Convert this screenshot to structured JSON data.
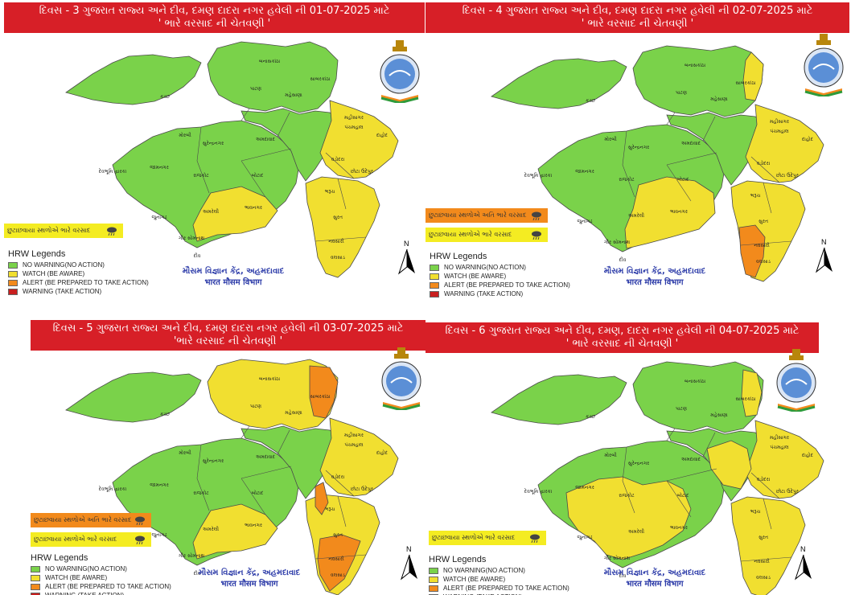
{
  "colors": {
    "banner": "#d71f27",
    "no_warning": "#7ad24a",
    "watch": "#f1df30",
    "alert": "#f28a1c",
    "warning": "#c81f1f",
    "office_text": "#2b3aa8"
  },
  "legend": {
    "title": "HRW Legends",
    "items": [
      {
        "label": "NO WARNING(NO ACTION)",
        "color": "#7ad24a"
      },
      {
        "label": "WATCH (BE AWARE)",
        "color": "#f1df30"
      },
      {
        "label": "ALERT (BE PREPARED TO TAKE ACTION)",
        "color": "#f28a1c"
      },
      {
        "label": "WARNING (TAKE ACTION)",
        "color": "#c81f1f"
      }
    ]
  },
  "office": {
    "line1": "મૌસમ વિજ્ઞાન કેંદ્ર, અહમદાવાદ",
    "line2": "भारत मौसम विभाग"
  },
  "north_label": "N",
  "panels": [
    {
      "title_line1": "દિવસ - 3 ગુજરાત રાજ્ય અને દીવ, દમણ દાદરા નગર હવેલી ની 01-07-2025 માટે",
      "title_line2": "' ભારે વરસાદ ની ચેતવણી '",
      "heavy_rain_label": "છુટાછવાયા સ્થળોએ ભારે વરસાદ",
      "very_heavy_rain_label": ""
    },
    {
      "title_line1": "દિવસ - 4 ગુજરાત રાજ્ય અને દીવ, દમણ દાદરા નગર હવેલી ની 02-07-2025 માટે",
      "title_line2": "' ભારે વરસાદ ની ચેતવણી '",
      "heavy_rain_label": "છુટાછવાયા સ્થળોએ ભારે વરસાદ",
      "very_heavy_rain_label": "છુટાછવાયા સ્થળોએ અતિ ભારે વરસાદ"
    },
    {
      "title_line1": "દિવસ - 5  ગુજરાત રાજ્ય અને દીવ, દમણ દાદરા નગર હવેલી ની  03-07-2025 માટે",
      "title_line2": "'ભારે વરસાદ ની ચેતવણી '",
      "heavy_rain_label": "છુટાછવાયા સ્થળોએ ભારે વરસાદ",
      "very_heavy_rain_label": "છુટાછવાયા સ્થળોએ અતિ ભારે વરસાદ"
    },
    {
      "title_line1": "દિવસ - 6  ગુજરાત રાજ્ય અને દીવ, દમણ, દાદરા નગર હવેલી ની 04-07-2025 માટે",
      "title_line2": "' ભારે વરસાદ ની ચેતવણી '",
      "heavy_rain_label": "છુટાછવાયા સ્થળોએ ભારે વરસાદ",
      "very_heavy_rain_label": ""
    }
  ],
  "districts": [
    "કચ્છ",
    "બનાસકાંઠા",
    "પાટણ",
    "મહેસાણા",
    "સાબરકાંઠા",
    "અરવલ્લી",
    "ગાંધીનગર",
    "અમદાવાદ",
    "મહીસાગર",
    "ખેડા",
    "પંચમહાલ",
    "દાહોદ",
    "આણંદ",
    "વડોદરા",
    "છોટા ઉદેપુર",
    "નર્મદા",
    "ભરૂચ",
    "સુરત",
    "તાપી",
    "નવસારી",
    "ડાંગ",
    "વલસાડ",
    "મોરબી",
    "સુરેન્દ્રનગર",
    "જામનગર",
    "દેવભૂમિ દ્વારકા",
    "રાજકોટ",
    "બોટાદ",
    "પોરબંદર",
    "જુનાગઢ",
    "અમરેલી",
    "ભાવનગર",
    "ગીર સોમનાથ",
    "દીવ",
    "દમણ",
    "દાદરા નગર હવેલી"
  ]
}
